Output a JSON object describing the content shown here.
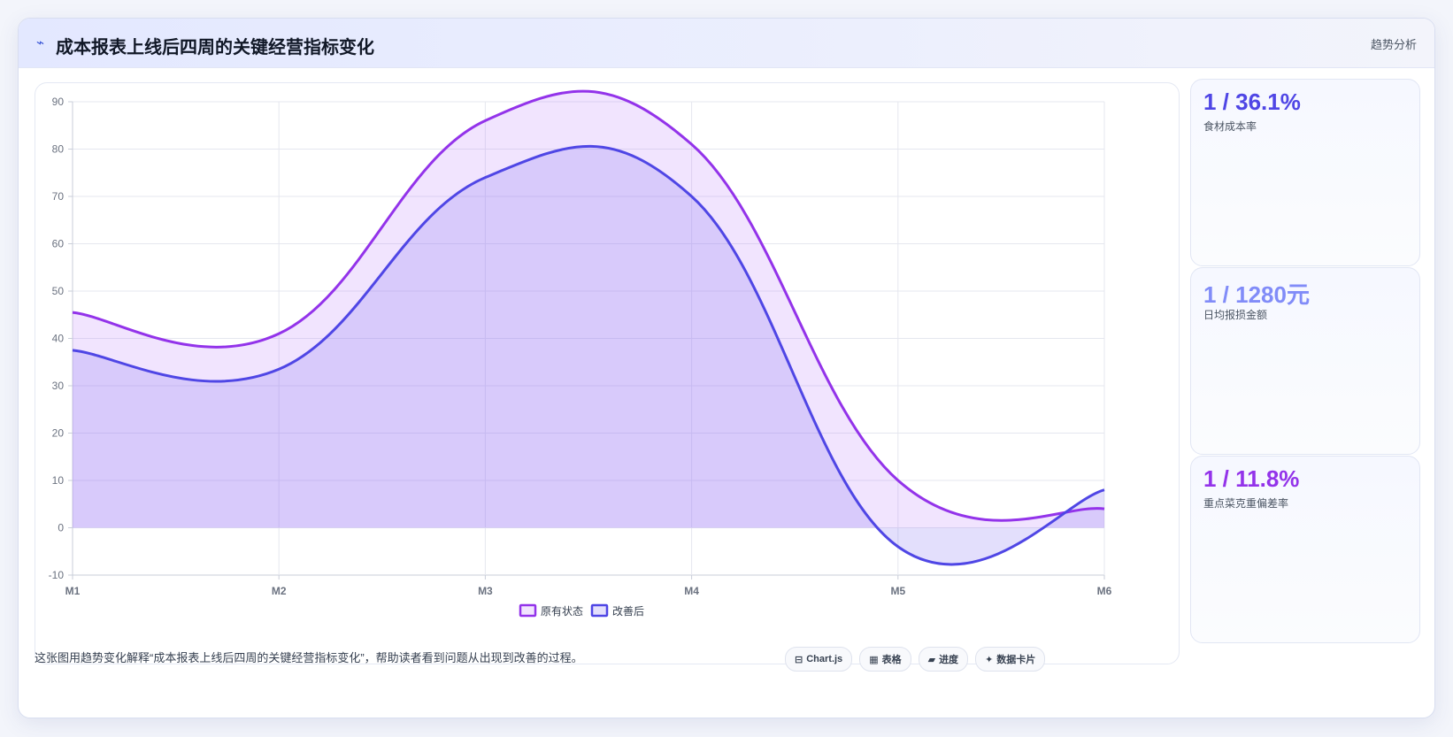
{
  "header": {
    "icon": "trend-line-icon",
    "title": "成本报表上线后四周的关键经营指标变化",
    "tag": "趋势分析"
  },
  "chart_data": {
    "type": "area",
    "categories": [
      "M1",
      "M2",
      "M3",
      "M4",
      "M5",
      "M6"
    ],
    "series": [
      {
        "name": "原有状态",
        "values": [
          45.5,
          41,
          86,
          81,
          10,
          4
        ],
        "color": "#9333ea"
      },
      {
        "name": "改善后",
        "values": [
          37.5,
          33.5,
          74,
          70,
          -4,
          8
        ],
        "color": "#4f46e5"
      }
    ],
    "ylim": [
      -10,
      90
    ],
    "yticks": [
      90,
      80,
      70,
      60,
      50,
      40,
      30,
      20,
      10,
      0,
      -10
    ],
    "grid": true,
    "legend": "bottom",
    "smooth": true,
    "fill": true
  },
  "cards": [
    {
      "value": "1 / 36.1%",
      "label": "食材成本率",
      "color": "#4f46e5"
    },
    {
      "value": "1 / 1280元",
      "label": "日均报损金额",
      "color": "#818cf8"
    },
    {
      "value": "1 / 11.8%",
      "label": "重点菜克重偏差率",
      "color": "#9333ea"
    }
  ],
  "footer": {
    "text": "这张图用趋势变化解释“成本报表上线后四周的关键经营指标变化”，帮助读者看到问题从出现到改善的过程。",
    "chips": [
      {
        "icon": "chart-icon",
        "glyph": "⊟",
        "label": "Chart.js"
      },
      {
        "icon": "table-icon",
        "glyph": "▦",
        "label": "表格"
      },
      {
        "icon": "progress-icon",
        "glyph": "▰",
        "label": "进度"
      },
      {
        "icon": "sparkle-icon",
        "glyph": "✦",
        "label": "数据卡片"
      }
    ]
  }
}
